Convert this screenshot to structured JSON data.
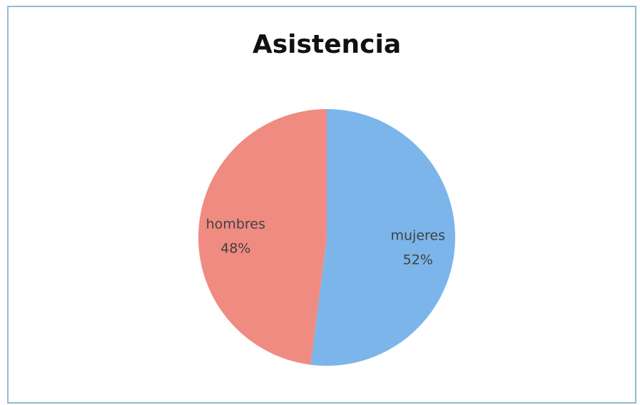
{
  "chart_data": {
    "type": "pie",
    "title": "Asistencia",
    "categories": [
      "mujeres",
      "hombres"
    ],
    "values": [
      52,
      48
    ],
    "value_labels": [
      "52%",
      "48%"
    ],
    "colors": [
      "#7cb5ea",
      "#f08b82"
    ]
  }
}
